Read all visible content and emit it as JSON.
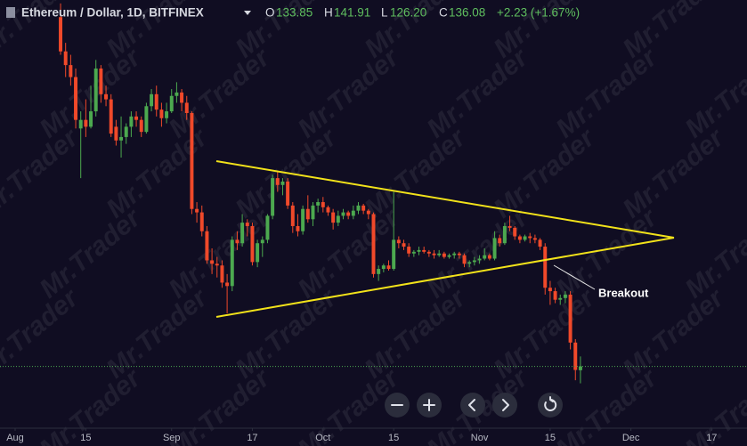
{
  "chart_data": {
    "type": "candlestick",
    "title": "Ethereum / Dollar, 1D, BITFINEX",
    "header_values": [
      {
        "name": "O",
        "value": "133.85"
      },
      {
        "name": "H",
        "value": "141.91"
      },
      {
        "name": "L",
        "value": "126.20"
      },
      {
        "name": "C",
        "value": "136.08"
      }
    ],
    "change": "+2.23 (+1.67%)",
    "annotation": "Breakout",
    "watermark": "Mr.Trader",
    "up_color": "#4ca94f",
    "down_color": "#f0492a",
    "xlim": [
      "07-29",
      "12-24"
    ],
    "xticks": [
      {
        "value": "08-01",
        "label": "Aug"
      },
      {
        "value": "08-15",
        "label": "15"
      },
      {
        "value": "09-01",
        "label": "Sep"
      },
      {
        "value": "09-17",
        "label": "17"
      },
      {
        "value": "10-01",
        "label": "Oct"
      },
      {
        "value": "10-15",
        "label": "15"
      },
      {
        "value": "11-01",
        "label": "Nov"
      },
      {
        "value": "11-15",
        "label": "15"
      },
      {
        "value": "12-01",
        "label": "Dec"
      },
      {
        "value": "12-17",
        "label": "17"
      }
    ],
    "ylim": [
      100,
      350
    ],
    "x": [
      "08-10",
      "08-11",
      "08-12",
      "08-13",
      "08-14",
      "08-15",
      "08-16",
      "08-17",
      "08-18",
      "08-19",
      "08-20",
      "08-21",
      "08-22",
      "08-23",
      "08-24",
      "08-25",
      "08-26",
      "08-27",
      "08-28",
      "08-29",
      "08-30",
      "08-31",
      "09-01",
      "09-02",
      "09-03",
      "09-04",
      "09-05",
      "09-06",
      "09-07",
      "09-08",
      "09-09",
      "09-10",
      "09-11",
      "09-12",
      "09-13",
      "09-14",
      "09-15",
      "09-16",
      "09-17",
      "09-18",
      "09-19",
      "09-20",
      "09-21",
      "09-22",
      "09-23",
      "09-24",
      "09-25",
      "09-26",
      "09-27",
      "09-28",
      "09-29",
      "09-30",
      "10-01",
      "10-02",
      "10-03",
      "10-04",
      "10-05",
      "10-06",
      "10-07",
      "10-08",
      "10-09",
      "10-10",
      "10-11",
      "10-12",
      "10-13",
      "10-14",
      "10-15",
      "10-16",
      "10-17",
      "10-18",
      "10-19",
      "10-20",
      "10-21",
      "10-22",
      "10-23",
      "10-24",
      "10-25",
      "10-26",
      "10-27",
      "10-28",
      "10-29",
      "10-30",
      "10-31",
      "11-01",
      "11-02",
      "11-03",
      "11-04",
      "11-05",
      "11-06",
      "11-07",
      "11-08",
      "11-09",
      "11-10",
      "11-11",
      "11-12",
      "11-13",
      "11-14",
      "11-15",
      "11-16",
      "11-17",
      "11-18",
      "11-19",
      "11-20",
      "11-21"
    ],
    "open": [
      340,
      320,
      312,
      305,
      275,
      280,
      276,
      285,
      310,
      295,
      292,
      276,
      268,
      270,
      276,
      282,
      280,
      273,
      288,
      295,
      286,
      281,
      285,
      294,
      296,
      290,
      284,
      228,
      226,
      215,
      198,
      196,
      195,
      185,
      183,
      210,
      208,
      220,
      218,
      197,
      208,
      210,
      224,
      246,
      242,
      244,
      230,
      218,
      215,
      228,
      222,
      230,
      232,
      229,
      226,
      220,
      224,
      226,
      224,
      227,
      230,
      227,
      225,
      190,
      193,
      195,
      193,
      210,
      208,
      206,
      202,
      203,
      204,
      203,
      202,
      201,
      202,
      200,
      201,
      202,
      201,
      196,
      197,
      198,
      199,
      201,
      199,
      211,
      208,
      218,
      217,
      212,
      210,
      212,
      211,
      210,
      206,
      182,
      180,
      175,
      176,
      178,
      150,
      133.85
    ],
    "high": [
      348,
      325,
      318,
      310,
      285,
      292,
      300,
      315,
      312,
      300,
      295,
      280,
      282,
      278,
      285,
      285,
      282,
      290,
      298,
      300,
      290,
      290,
      298,
      302,
      298,
      294,
      285,
      232,
      230,
      218,
      205,
      200,
      198,
      190,
      212,
      215,
      225,
      222,
      220,
      210,
      212,
      225,
      248,
      250,
      246,
      246,
      232,
      225,
      230,
      236,
      232,
      234,
      235,
      230,
      228,
      227,
      228,
      227,
      230,
      232,
      231,
      228,
      226,
      195,
      196,
      198,
      238,
      212,
      210,
      208,
      204,
      206,
      206,
      204,
      204,
      204,
      203,
      202,
      203,
      203,
      202,
      198,
      200,
      201,
      205,
      202,
      215,
      213,
      220,
      224,
      218,
      213,
      213,
      214,
      213,
      211,
      208,
      186,
      182,
      178,
      180,
      180,
      152,
      141.91
    ],
    "low": [
      318,
      305,
      300,
      275,
      246,
      270,
      275,
      282,
      290,
      288,
      270,
      265,
      258,
      266,
      270,
      276,
      270,
      272,
      285,
      282,
      276,
      278,
      284,
      290,
      285,
      280,
      225,
      220,
      212,
      196,
      190,
      188,
      182,
      167,
      180,
      204,
      206,
      212,
      195,
      194,
      200,
      208,
      222,
      238,
      236,
      228,
      214,
      212,
      213,
      220,
      218,
      226,
      226,
      224,
      216,
      218,
      222,
      222,
      222,
      225,
      225,
      222,
      188,
      186,
      191,
      192,
      192,
      205,
      204,
      200,
      200,
      201,
      202,
      200,
      199,
      200,
      199,
      199,
      199,
      199,
      194,
      194,
      195,
      196,
      198,
      198,
      198,
      206,
      207,
      215,
      210,
      208,
      209,
      208,
      208,
      204,
      178,
      172,
      173,
      172,
      173,
      146,
      128,
      126.2
    ],
    "close": [
      320,
      312,
      305,
      280,
      280,
      276,
      285,
      310,
      295,
      292,
      272,
      268,
      270,
      276,
      282,
      280,
      273,
      288,
      295,
      286,
      281,
      285,
      294,
      296,
      290,
      284,
      228,
      226,
      215,
      198,
      196,
      195,
      185,
      183,
      210,
      208,
      220,
      218,
      197,
      208,
      210,
      224,
      246,
      242,
      244,
      230,
      218,
      215,
      228,
      222,
      230,
      232,
      229,
      226,
      220,
      224,
      226,
      224,
      227,
      230,
      227,
      225,
      190,
      193,
      195,
      193,
      210,
      208,
      206,
      202,
      203,
      204,
      203,
      202,
      201,
      202,
      200,
      201,
      202,
      201,
      196,
      197,
      198,
      199,
      201,
      199,
      211,
      208,
      218,
      217,
      212,
      210,
      212,
      211,
      210,
      206,
      182,
      180,
      175,
      176,
      178,
      150,
      134,
      136.08
    ]
  }
}
